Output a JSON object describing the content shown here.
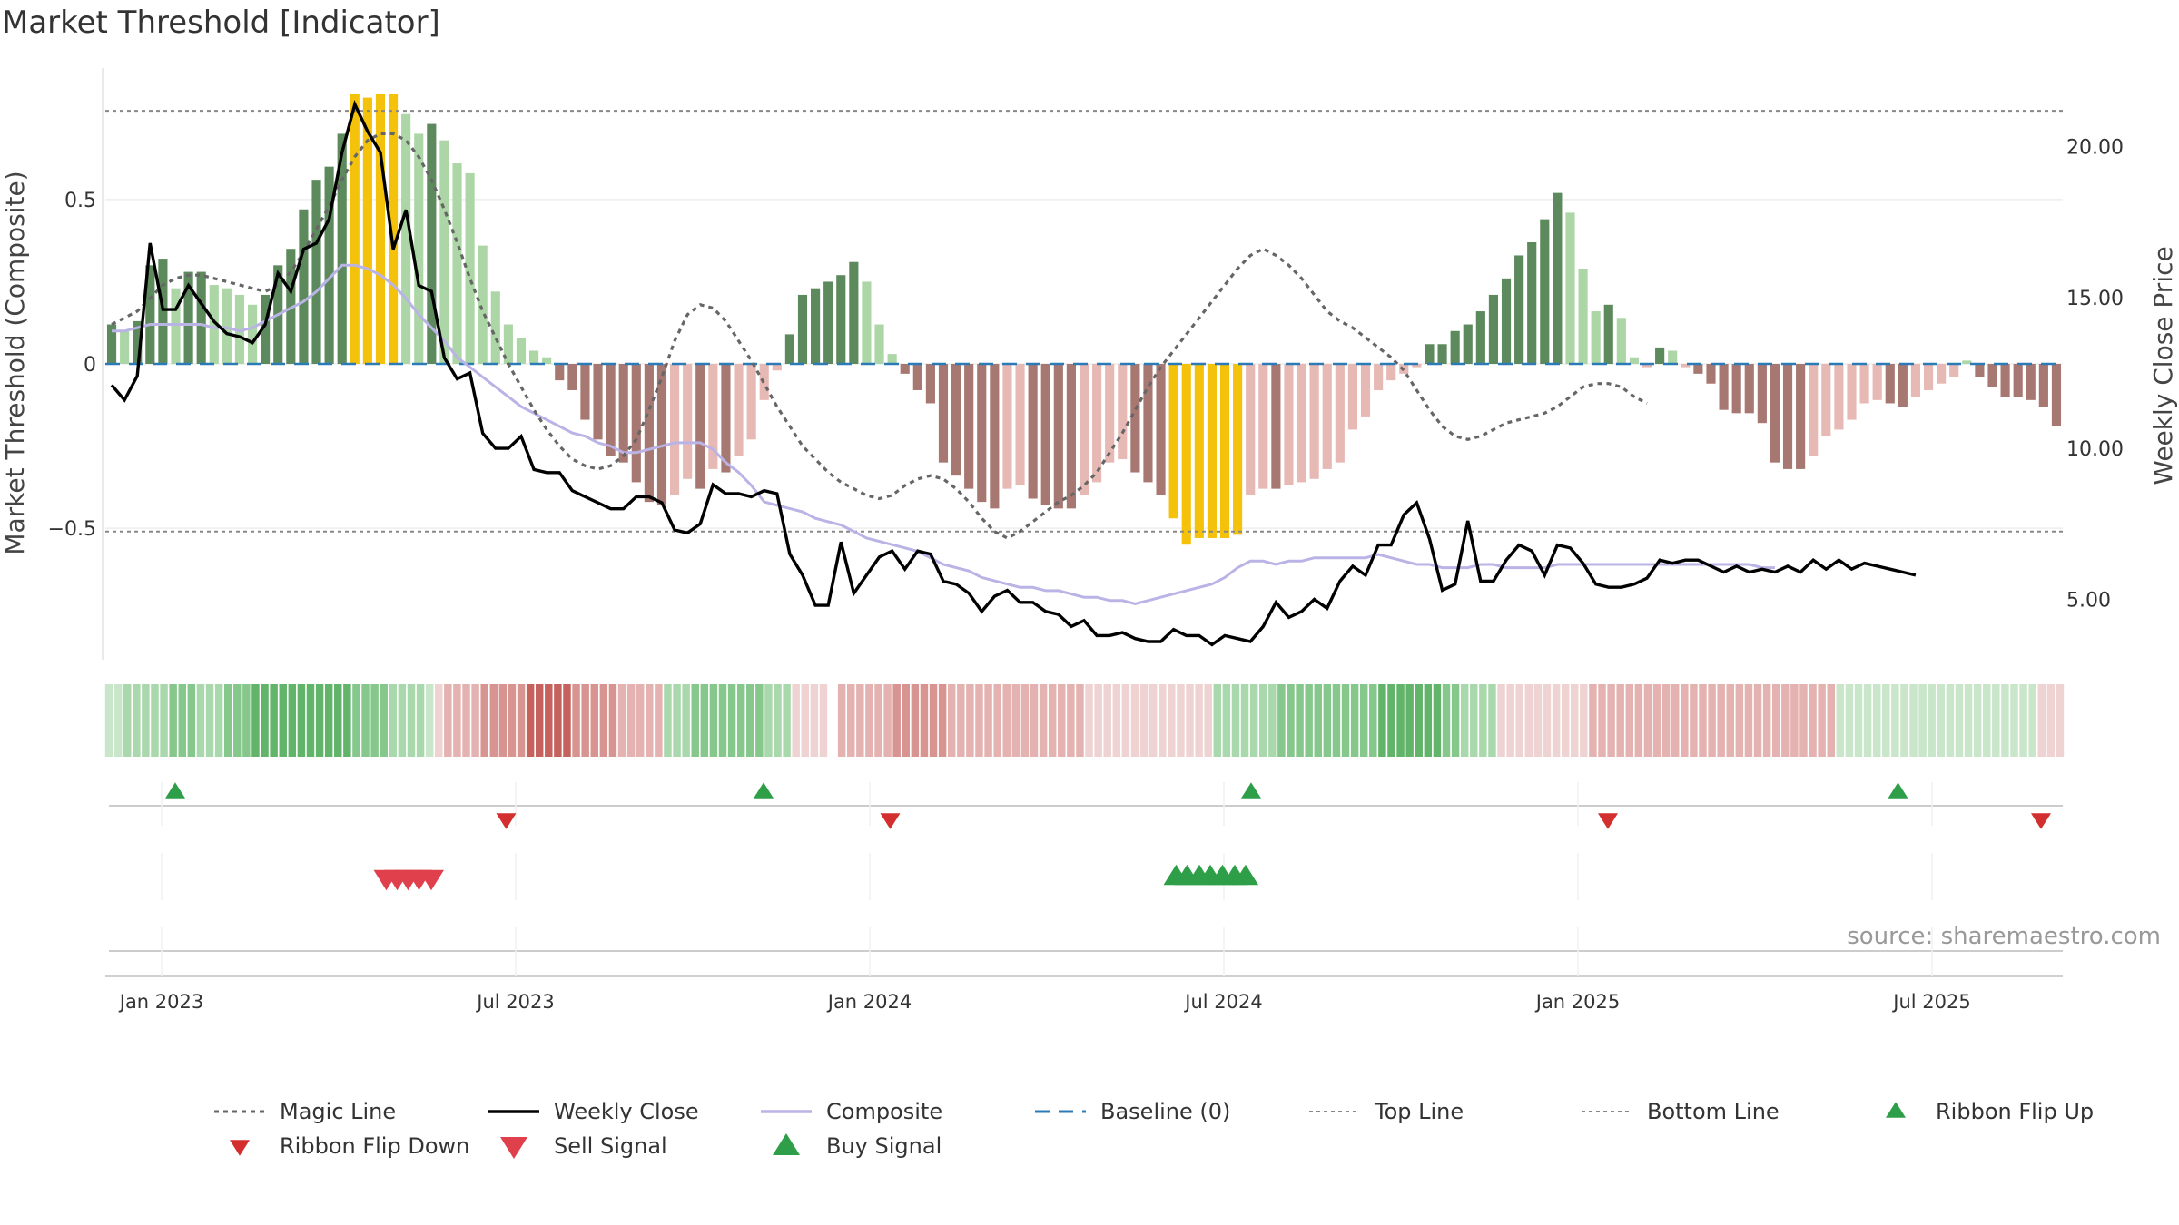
{
  "chart_data": {
    "type": "bar",
    "title": "Market Threshold [Indicator]",
    "ylabel_left": "Market Threshold (Composite)",
    "ylabel_right": "Weekly Close Price",
    "source": "source: sharemaestro.com",
    "ylim_left": [
      -0.9,
      0.9
    ],
    "ylim_right": [
      3.0,
      22.6
    ],
    "left_ticks": [
      {
        "v": 0.5,
        "label": "0.5"
      },
      {
        "v": 0,
        "label": "0"
      },
      {
        "v": -0.5,
        "label": "−0.5"
      }
    ],
    "right_ticks": [
      {
        "v": 20,
        "label": "20.00"
      },
      {
        "v": 15,
        "label": "15.00"
      },
      {
        "v": 10,
        "label": "10.00"
      },
      {
        "v": 5,
        "label": "5.00"
      }
    ],
    "x_ticks": [
      "Jan 2023",
      "Jul 2023",
      "Jan 2024",
      "Jul 2024",
      "Jan 2025",
      "Jul 2025"
    ],
    "x_tick_weeks": [
      2,
      28,
      54,
      80,
      106,
      132
    ],
    "top_line": 0.77,
    "bottom_line": -0.51,
    "bars": [
      0.12,
      0.1,
      0.13,
      0.3,
      0.32,
      0.23,
      0.28,
      0.28,
      0.24,
      0.23,
      0.21,
      0.18,
      0.21,
      0.3,
      0.35,
      0.47,
      0.56,
      0.6,
      0.7,
      0.82,
      0.81,
      0.82,
      0.82,
      0.76,
      0.7,
      0.73,
      0.68,
      0.61,
      0.58,
      0.36,
      0.22,
      0.12,
      0.08,
      0.04,
      0.02,
      -0.05,
      -0.08,
      -0.17,
      -0.23,
      -0.28,
      -0.3,
      -0.36,
      -0.42,
      -0.43,
      -0.4,
      -0.35,
      -0.38,
      -0.32,
      -0.33,
      -0.28,
      -0.23,
      -0.11,
      -0.02,
      0.09,
      0.21,
      0.23,
      0.25,
      0.27,
      0.31,
      0.25,
      0.12,
      0.03,
      -0.03,
      -0.08,
      -0.12,
      -0.3,
      -0.34,
      -0.38,
      -0.42,
      -0.44,
      -0.38,
      -0.37,
      -0.41,
      -0.43,
      -0.44,
      -0.44,
      -0.4,
      -0.36,
      -0.3,
      -0.29,
      -0.33,
      -0.36,
      -0.4,
      -0.47,
      -0.55,
      -0.53,
      -0.53,
      -0.53,
      -0.52,
      -0.4,
      -0.38,
      -0.38,
      -0.37,
      -0.36,
      -0.35,
      -0.32,
      -0.3,
      -0.2,
      -0.16,
      -0.08,
      -0.05,
      -0.03,
      -0.01,
      0.06,
      0.06,
      0.1,
      0.12,
      0.16,
      0.21,
      0.26,
      0.33,
      0.37,
      0.44,
      0.52,
      0.46,
      0.29,
      0.16,
      0.18,
      0.14,
      0.02,
      -0.01,
      0.05,
      0.04,
      -0.01,
      -0.03,
      -0.06,
      -0.14,
      -0.15,
      -0.15,
      -0.18,
      -0.3,
      -0.32,
      -0.32,
      -0.28,
      -0.22,
      -0.2,
      -0.17,
      -0.12,
      -0.11,
      -0.12,
      -0.13,
      -0.1,
      -0.08,
      -0.06,
      -0.04,
      0.01,
      -0.04,
      -0.07,
      -0.1,
      -0.1,
      -0.11,
      -0.13,
      -0.19
    ],
    "price": [
      12.1,
      11.6,
      12.4,
      16.8,
      14.6,
      14.6,
      15.4,
      14.8,
      14.2,
      13.8,
      13.7,
      13.5,
      14.1,
      15.8,
      15.2,
      16.6,
      16.8,
      17.6,
      19.8,
      21.4,
      20.5,
      19.8,
      16.6,
      17.9,
      15.4,
      15.2,
      13.0,
      12.3,
      12.5,
      10.5,
      10.0,
      10.0,
      10.4,
      9.3,
      9.2,
      9.2,
      8.6,
      8.4,
      8.2,
      8.0,
      8.0,
      8.4,
      8.4,
      8.2,
      7.3,
      7.2,
      7.5,
      8.8,
      8.5,
      8.5,
      8.4,
      8.6,
      8.5,
      6.5,
      5.8,
      4.8,
      4.8,
      6.9,
      5.2,
      5.8,
      6.4,
      6.6,
      6.0,
      6.6,
      6.5,
      5.6,
      5.5,
      5.2,
      4.6,
      5.1,
      5.3,
      4.9,
      4.9,
      4.6,
      4.5,
      4.1,
      4.3,
      3.8,
      3.8,
      3.9,
      3.7,
      3.6,
      3.6,
      4.0,
      3.8,
      3.8,
      3.5,
      3.8,
      3.7,
      3.6,
      4.1,
      4.9,
      4.4,
      4.6,
      5.0,
      4.7,
      5.6,
      6.1,
      5.8,
      6.8,
      6.8,
      7.8,
      8.2,
      7.0,
      5.3,
      5.5,
      7.6,
      5.6,
      5.6,
      6.3,
      6.8,
      6.6,
      5.8,
      6.8,
      6.7,
      6.2,
      5.5,
      5.4,
      5.4,
      5.5,
      5.7,
      6.3,
      6.2,
      6.3,
      6.3,
      6.1,
      5.9,
      6.1,
      5.9,
      6.0,
      5.9,
      6.1,
      5.9,
      6.3,
      6.0,
      6.3,
      6.0,
      6.2,
      6.1,
      6.0,
      5.9,
      5.8
    ],
    "composite": [
      0.1,
      0.1,
      0.11,
      0.12,
      0.12,
      0.12,
      0.12,
      0.12,
      0.11,
      0.11,
      0.1,
      0.11,
      0.13,
      0.15,
      0.17,
      0.19,
      0.22,
      0.26,
      0.3,
      0.3,
      0.29,
      0.27,
      0.24,
      0.2,
      0.15,
      0.11,
      0.07,
      0.02,
      -0.01,
      -0.04,
      -0.07,
      -0.1,
      -0.13,
      -0.15,
      -0.17,
      -0.19,
      -0.21,
      -0.22,
      -0.24,
      -0.25,
      -0.27,
      -0.27,
      -0.26,
      -0.25,
      -0.24,
      -0.24,
      -0.24,
      -0.26,
      -0.3,
      -0.33,
      -0.37,
      -0.42,
      -0.43,
      -0.44,
      -0.45,
      -0.47,
      -0.48,
      -0.49,
      -0.51,
      -0.53,
      -0.54,
      -0.55,
      -0.56,
      -0.57,
      -0.59,
      -0.61,
      -0.62,
      -0.63,
      -0.65,
      -0.66,
      -0.67,
      -0.68,
      -0.68,
      -0.69,
      -0.69,
      -0.7,
      -0.71,
      -0.71,
      -0.72,
      -0.72,
      -0.73,
      -0.72,
      -0.71,
      -0.7,
      -0.69,
      -0.68,
      -0.67,
      -0.65,
      -0.62,
      -0.6,
      -0.6,
      -0.61,
      -0.6,
      -0.6,
      -0.59,
      -0.59,
      -0.59,
      -0.59,
      -0.59,
      -0.58,
      -0.59,
      -0.6,
      -0.61,
      -0.61,
      -0.62,
      -0.62,
      -0.62,
      -0.61,
      -0.61,
      -0.62,
      -0.62,
      -0.62,
      -0.62,
      -0.61,
      -0.61,
      -0.61,
      -0.61,
      -0.61,
      -0.61,
      -0.61,
      -0.61,
      -0.61,
      -0.61,
      -0.61,
      -0.61,
      -0.61,
      -0.61,
      -0.61,
      -0.61,
      -0.62,
      -0.62
    ],
    "magic": [
      0.12,
      0.14,
      0.16,
      0.2,
      0.24,
      0.26,
      0.27,
      0.27,
      0.26,
      0.25,
      0.24,
      0.23,
      0.22,
      0.24,
      0.28,
      0.34,
      0.41,
      0.48,
      0.56,
      0.63,
      0.68,
      0.7,
      0.7,
      0.68,
      0.63,
      0.56,
      0.47,
      0.37,
      0.26,
      0.16,
      0.08,
      0.0,
      -0.07,
      -0.14,
      -0.2,
      -0.25,
      -0.29,
      -0.31,
      -0.32,
      -0.31,
      -0.28,
      -0.23,
      -0.14,
      -0.04,
      0.07,
      0.15,
      0.18,
      0.17,
      0.13,
      0.07,
      0.01,
      -0.06,
      -0.13,
      -0.19,
      -0.25,
      -0.29,
      -0.33,
      -0.36,
      -0.38,
      -0.4,
      -0.41,
      -0.4,
      -0.37,
      -0.35,
      -0.34,
      -0.35,
      -0.38,
      -0.42,
      -0.47,
      -0.51,
      -0.53,
      -0.51,
      -0.48,
      -0.45,
      -0.42,
      -0.4,
      -0.37,
      -0.33,
      -0.27,
      -0.21,
      -0.14,
      -0.07,
      -0.01,
      0.04,
      0.09,
      0.14,
      0.19,
      0.24,
      0.29,
      0.33,
      0.35,
      0.33,
      0.3,
      0.26,
      0.21,
      0.16,
      0.13,
      0.11,
      0.08,
      0.05,
      0.02,
      -0.02,
      -0.08,
      -0.14,
      -0.19,
      -0.22,
      -0.23,
      -0.22,
      -0.2,
      -0.18,
      -0.17,
      -0.16,
      -0.15,
      -0.13,
      -0.1,
      -0.07,
      -0.06,
      -0.06,
      -0.07,
      -0.1,
      -0.12
    ],
    "ribbon": [
      1,
      1,
      2,
      2,
      2,
      2,
      2,
      3,
      3,
      3,
      2,
      2,
      2,
      3,
      3,
      3,
      4,
      4,
      4,
      4,
      4,
      4,
      4,
      4,
      4,
      4,
      4,
      3,
      3,
      3,
      3,
      2,
      2,
      2,
      2,
      1,
      -1,
      -2,
      -2,
      -2,
      -2,
      -3,
      -3,
      -3,
      -3,
      -3,
      -4,
      -4,
      -4,
      -4,
      -4,
      -3,
      -3,
      -3,
      -3,
      -3,
      -2,
      -2,
      -2,
      -2,
      -2,
      2,
      2,
      2,
      3,
      3,
      3,
      3,
      3,
      3,
      3,
      3,
      2,
      2,
      2,
      -1,
      -1,
      -1,
      -1,
      0,
      -2,
      -2,
      -2,
      -2,
      -2,
      -2,
      -3,
      -3,
      -3,
      -3,
      -3,
      -3,
      -2,
      -2,
      -2,
      -2,
      -2,
      -2,
      -2,
      -2,
      -2,
      -2,
      -2,
      -2,
      -2,
      -2,
      -2,
      -1,
      -1,
      -1,
      -1,
      -1,
      -1,
      -1,
      -1,
      -1,
      -1,
      -1,
      -1,
      -1,
      -1,
      2,
      2,
      2,
      2,
      2,
      2,
      2,
      3,
      3,
      3,
      3,
      3,
      3,
      3,
      3,
      3,
      3,
      3,
      4,
      4,
      4,
      4,
      4,
      4,
      4,
      3,
      3,
      2,
      2,
      2,
      2,
      -1,
      -1,
      -1,
      -1,
      -1,
      -1,
      -1,
      -1,
      -1,
      -1,
      -2,
      -2,
      -2,
      -2,
      -2,
      -2,
      -2,
      -2,
      -2,
      -2,
      -2,
      -2,
      -2,
      -2,
      -2,
      -2,
      -2,
      -2,
      -2,
      -2,
      -2,
      -2,
      -2,
      -2,
      -2,
      -2,
      -2,
      1,
      1,
      1,
      1,
      1,
      1,
      1,
      1,
      1,
      1,
      1,
      1,
      1,
      1,
      1,
      1,
      1,
      1,
      1,
      1,
      1,
      1,
      -1,
      -1,
      -1
    ],
    "ribbon_flip_up": [
      3,
      46.2,
      82,
      129.5
    ],
    "ribbon_flip_down": [
      27.3,
      55.5,
      108.2,
      140
    ],
    "sell_signals": [
      18.5,
      19.3,
      20.1,
      20.9,
      21.8
    ],
    "buy_signals": [
      76.5,
      77.3,
      78.2,
      79.0,
      79.9,
      80.8,
      81.6
    ],
    "series": [
      {
        "name": "Magic Line",
        "color": "#666666",
        "style": "dotted"
      },
      {
        "name": "Weekly Close",
        "color": "#000000",
        "style": "solid"
      },
      {
        "name": "Composite",
        "color": "#b9b3e6",
        "style": "solid"
      },
      {
        "name": "Baseline (0)",
        "color": "#2c7bb6",
        "style": "dashed"
      },
      {
        "name": "Top Line",
        "color": "#888888",
        "style": "dotted-fine"
      },
      {
        "name": "Bottom Line",
        "color": "#888888",
        "style": "dotted-fine"
      },
      {
        "name": "Ribbon Flip Up",
        "color": "#2e9e48",
        "style": "triangle-up"
      },
      {
        "name": "Ribbon Flip Down",
        "color": "#d32f2f",
        "style": "triangle-down"
      },
      {
        "name": "Sell Signal",
        "color": "#e0404b",
        "style": "triangle-down-large"
      },
      {
        "name": "Buy Signal",
        "color": "#2e9e48",
        "style": "triangle-up-large"
      }
    ],
    "colors": {
      "bar_pos_dark": "#5d8a5d",
      "bar_pos_light": "#acd6a6",
      "bar_neg_dark": "#a77872",
      "bar_neg_light": "#e7b9b4",
      "bar_extreme": "#f5c20b",
      "ribbon_pos": [
        "#c9e6ca",
        "#a9d8ac",
        "#86c78c",
        "#63b46b"
      ],
      "ribbon_neg": [
        "#efd3d2",
        "#e4b3b1",
        "#d79491",
        "#c6625e"
      ]
    }
  }
}
